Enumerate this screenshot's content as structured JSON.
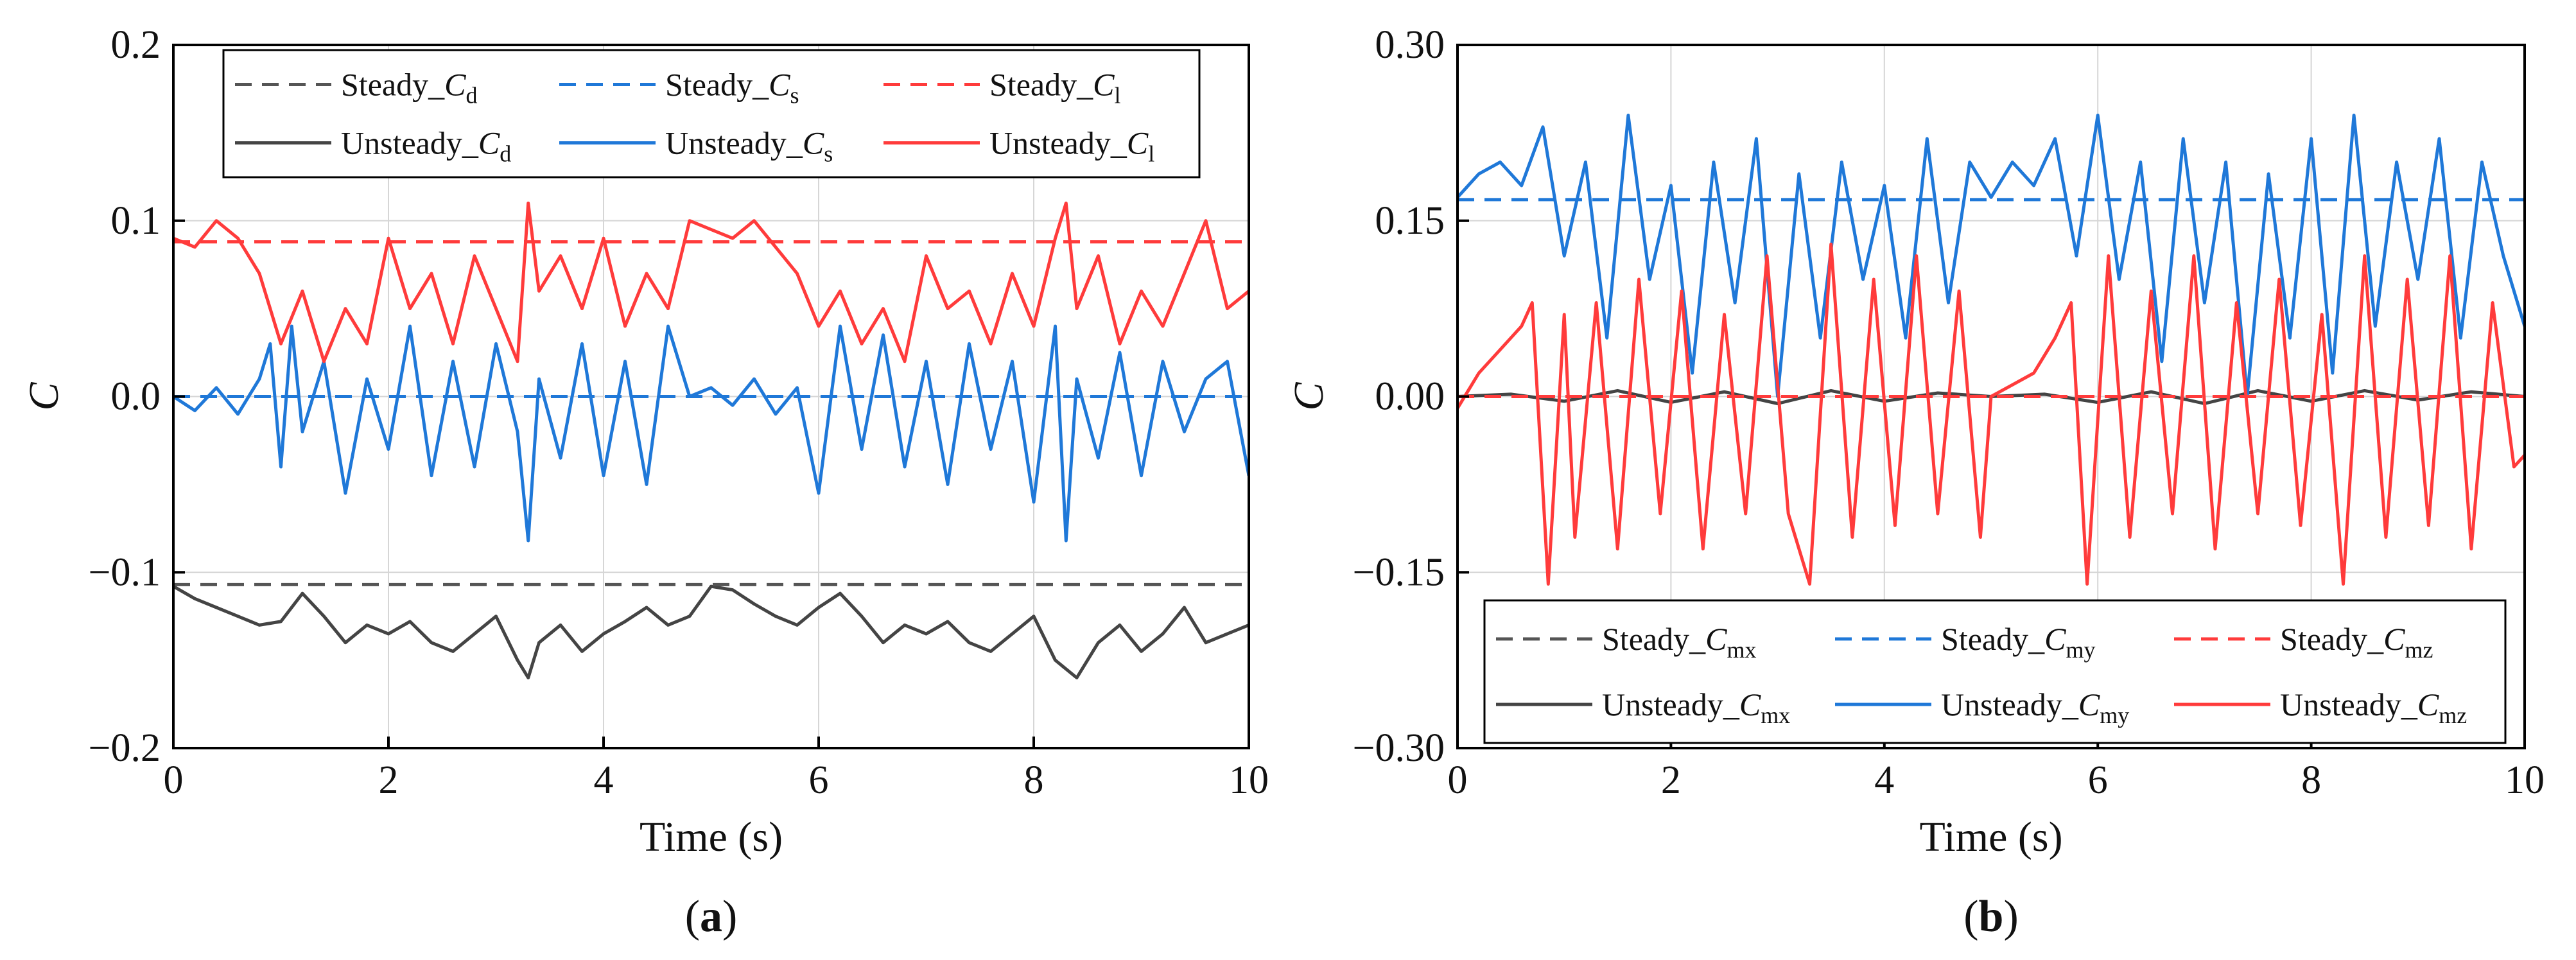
{
  "chart_data": [
    {
      "type": "line",
      "panel_label": "a",
      "xlabel": "Time (s)",
      "ylabel": "C",
      "xlim": [
        0,
        10
      ],
      "ylim": [
        -0.2,
        0.2
      ],
      "x_ticks": [
        0,
        2,
        4,
        6,
        8,
        10
      ],
      "x_tick_labels": [
        "0",
        "2",
        "4",
        "6",
        "8",
        "10"
      ],
      "y_ticks": [
        -0.2,
        -0.1,
        0.0,
        0.1,
        0.2
      ],
      "y_tick_labels": [
        "−0.2",
        "−0.1",
        "0.0",
        "0.1",
        "0.2"
      ],
      "grid": true,
      "legend_position": "top",
      "legend_columns": 3,
      "series": [
        {
          "name": "Steady_Cd",
          "legend_prefix": "Steady_",
          "legend_symbol": "C",
          "legend_sub": "d",
          "style": "dashed",
          "color": "#555555",
          "x": [
            0,
            10
          ],
          "y": [
            -0.107,
            -0.107
          ]
        },
        {
          "name": "Steady_Cs",
          "legend_prefix": "Steady_",
          "legend_symbol": "C",
          "legend_sub": "s",
          "style": "dashed",
          "color": "#1f78d8",
          "x": [
            0,
            10
          ],
          "y": [
            0.0,
            0.0
          ]
        },
        {
          "name": "Steady_Cl",
          "legend_prefix": "Steady_",
          "legend_symbol": "C",
          "legend_sub": "l",
          "style": "dashed",
          "color": "#ff3b3b",
          "x": [
            0,
            10
          ],
          "y": [
            0.088,
            0.088
          ]
        },
        {
          "name": "Unsteady_Cd",
          "legend_prefix": "Unsteady_",
          "legend_symbol": "C",
          "legend_sub": "d",
          "style": "solid",
          "color": "#444444",
          "x": [
            0,
            0.2,
            0.4,
            0.6,
            0.8,
            1.0,
            1.2,
            1.4,
            1.6,
            1.8,
            2.0,
            2.2,
            2.4,
            2.6,
            2.8,
            3.0,
            3.2,
            3.3,
            3.4,
            3.6,
            3.8,
            4.0,
            4.2,
            4.4,
            4.6,
            4.8,
            5.0,
            5.2,
            5.4,
            5.6,
            5.8,
            6.0,
            6.2,
            6.4,
            6.6,
            6.8,
            7.0,
            7.2,
            7.4,
            7.6,
            7.8,
            8.0,
            8.2,
            8.4,
            8.6,
            8.8,
            9.0,
            9.2,
            9.4,
            9.6,
            9.8,
            10.0
          ],
          "y": [
            -0.108,
            -0.115,
            -0.12,
            -0.125,
            -0.13,
            -0.128,
            -0.112,
            -0.125,
            -0.14,
            -0.13,
            -0.135,
            -0.128,
            -0.14,
            -0.145,
            -0.135,
            -0.125,
            -0.15,
            -0.16,
            -0.14,
            -0.13,
            -0.145,
            -0.135,
            -0.128,
            -0.12,
            -0.13,
            -0.125,
            -0.108,
            -0.11,
            -0.118,
            -0.125,
            -0.13,
            -0.12,
            -0.112,
            -0.125,
            -0.14,
            -0.13,
            -0.135,
            -0.128,
            -0.14,
            -0.145,
            -0.135,
            -0.125,
            -0.15,
            -0.16,
            -0.14,
            -0.13,
            -0.145,
            -0.135,
            -0.12,
            -0.14,
            -0.135,
            -0.13
          ]
        },
        {
          "name": "Unsteady_Cs",
          "legend_prefix": "Unsteady_",
          "legend_symbol": "C",
          "legend_sub": "s",
          "style": "solid",
          "color": "#1f78d8",
          "x": [
            0,
            0.2,
            0.4,
            0.6,
            0.8,
            0.9,
            1.0,
            1.1,
            1.2,
            1.4,
            1.6,
            1.8,
            2.0,
            2.2,
            2.4,
            2.6,
            2.8,
            3.0,
            3.2,
            3.3,
            3.4,
            3.6,
            3.8,
            4.0,
            4.2,
            4.4,
            4.6,
            4.8,
            5.0,
            5.2,
            5.4,
            5.6,
            5.8,
            6.0,
            6.2,
            6.4,
            6.6,
            6.8,
            7.0,
            7.2,
            7.4,
            7.6,
            7.8,
            8.0,
            8.2,
            8.3,
            8.4,
            8.6,
            8.8,
            9.0,
            9.2,
            9.4,
            9.6,
            9.8,
            10.0
          ],
          "y": [
            0.0,
            -0.008,
            0.005,
            -0.01,
            0.01,
            0.03,
            -0.04,
            0.04,
            -0.02,
            0.02,
            -0.055,
            0.01,
            -0.03,
            0.04,
            -0.045,
            0.02,
            -0.04,
            0.03,
            -0.02,
            -0.082,
            0.01,
            -0.035,
            0.03,
            -0.045,
            0.02,
            -0.05,
            0.04,
            0.0,
            0.005,
            -0.005,
            0.01,
            -0.01,
            0.005,
            -0.055,
            0.04,
            -0.03,
            0.035,
            -0.04,
            0.02,
            -0.05,
            0.03,
            -0.03,
            0.02,
            -0.06,
            0.04,
            -0.082,
            0.01,
            -0.035,
            0.025,
            -0.045,
            0.02,
            -0.02,
            0.01,
            0.02,
            -0.045
          ]
        },
        {
          "name": "Unsteady_Cl",
          "legend_prefix": "Unsteady_",
          "legend_symbol": "C",
          "legend_sub": "l",
          "style": "solid",
          "color": "#ff3b3b",
          "x": [
            0,
            0.2,
            0.4,
            0.6,
            0.8,
            0.9,
            1.0,
            1.2,
            1.4,
            1.6,
            1.8,
            2.0,
            2.2,
            2.4,
            2.6,
            2.8,
            3.0,
            3.2,
            3.3,
            3.4,
            3.6,
            3.8,
            4.0,
            4.2,
            4.4,
            4.6,
            4.8,
            5.0,
            5.2,
            5.4,
            5.6,
            5.8,
            6.0,
            6.2,
            6.4,
            6.6,
            6.8,
            7.0,
            7.2,
            7.4,
            7.6,
            7.8,
            8.0,
            8.2,
            8.3,
            8.4,
            8.6,
            8.8,
            9.0,
            9.2,
            9.4,
            9.6,
            9.8,
            10.0
          ],
          "y": [
            0.09,
            0.085,
            0.1,
            0.09,
            0.07,
            0.05,
            0.03,
            0.06,
            0.02,
            0.05,
            0.03,
            0.09,
            0.05,
            0.07,
            0.03,
            0.08,
            0.05,
            0.02,
            0.11,
            0.06,
            0.08,
            0.05,
            0.09,
            0.04,
            0.07,
            0.05,
            0.1,
            0.095,
            0.09,
            0.1,
            0.085,
            0.07,
            0.04,
            0.06,
            0.03,
            0.05,
            0.02,
            0.08,
            0.05,
            0.06,
            0.03,
            0.07,
            0.04,
            0.09,
            0.11,
            0.05,
            0.08,
            0.03,
            0.06,
            0.04,
            0.07,
            0.1,
            0.05,
            0.06
          ]
        }
      ]
    },
    {
      "type": "line",
      "panel_label": "b",
      "xlabel": "Time (s)",
      "ylabel": "C",
      "xlim": [
        0,
        10
      ],
      "ylim": [
        -0.3,
        0.3
      ],
      "x_ticks": [
        0,
        2,
        4,
        6,
        8,
        10
      ],
      "x_tick_labels": [
        "0",
        "2",
        "4",
        "6",
        "8",
        "10"
      ],
      "y_ticks": [
        -0.3,
        -0.15,
        0.0,
        0.15,
        0.3
      ],
      "y_tick_labels": [
        "−0.30",
        "−0.15",
        "0.00",
        "0.15",
        "0.30"
      ],
      "grid": true,
      "legend_position": "bottom",
      "legend_columns": 3,
      "series": [
        {
          "name": "Steady_Cmx",
          "legend_prefix": "Steady_",
          "legend_symbol": "C",
          "legend_sub": "mx",
          "style": "dashed",
          "color": "#555555",
          "x": [
            0,
            10
          ],
          "y": [
            0.0,
            0.0
          ]
        },
        {
          "name": "Steady_Cmy",
          "legend_prefix": "Steady_",
          "legend_symbol": "C",
          "legend_sub": "my",
          "style": "dashed",
          "color": "#1f78d8",
          "x": [
            0,
            10
          ],
          "y": [
            0.168,
            0.168
          ]
        },
        {
          "name": "Steady_Cmz",
          "legend_prefix": "Steady_",
          "legend_symbol": "C",
          "legend_sub": "mz",
          "style": "dashed",
          "color": "#ff3b3b",
          "x": [
            0,
            10
          ],
          "y": [
            0.0,
            0.0
          ]
        },
        {
          "name": "Unsteady_Cmx",
          "legend_prefix": "Unsteady_",
          "legend_symbol": "C",
          "legend_sub": "mx",
          "style": "solid",
          "color": "#444444",
          "x": [
            0,
            0.5,
            1.0,
            1.5,
            2.0,
            2.5,
            3.0,
            3.5,
            4.0,
            4.5,
            5.0,
            5.5,
            6.0,
            6.5,
            7.0,
            7.5,
            8.0,
            8.5,
            9.0,
            9.5,
            10.0
          ],
          "y": [
            0.0,
            0.002,
            -0.004,
            0.005,
            -0.005,
            0.004,
            -0.006,
            0.005,
            -0.004,
            0.003,
            0.0,
            0.002,
            -0.005,
            0.004,
            -0.006,
            0.005,
            -0.004,
            0.005,
            -0.003,
            0.004,
            0.0
          ]
        },
        {
          "name": "Unsteady_Cmy",
          "legend_prefix": "Unsteady_",
          "legend_symbol": "C",
          "legend_sub": "my",
          "style": "solid",
          "color": "#1f78d8",
          "x": [
            0,
            0.2,
            0.4,
            0.6,
            0.8,
            1.0,
            1.2,
            1.4,
            1.6,
            1.8,
            2.0,
            2.2,
            2.4,
            2.6,
            2.8,
            3.0,
            3.2,
            3.4,
            3.6,
            3.8,
            4.0,
            4.2,
            4.4,
            4.6,
            4.8,
            5.0,
            5.2,
            5.4,
            5.6,
            5.8,
            6.0,
            6.2,
            6.4,
            6.6,
            6.8,
            7.0,
            7.2,
            7.4,
            7.6,
            7.8,
            8.0,
            8.2,
            8.4,
            8.6,
            8.8,
            9.0,
            9.2,
            9.4,
            9.6,
            9.8,
            10.0
          ],
          "y": [
            0.17,
            0.19,
            0.2,
            0.18,
            0.23,
            0.12,
            0.2,
            0.05,
            0.24,
            0.1,
            0.18,
            0.02,
            0.2,
            0.08,
            0.22,
            0.0,
            0.19,
            0.05,
            0.2,
            0.1,
            0.18,
            0.05,
            0.22,
            0.08,
            0.2,
            0.17,
            0.2,
            0.18,
            0.22,
            0.12,
            0.24,
            0.1,
            0.2,
            0.03,
            0.22,
            0.08,
            0.2,
            0.0,
            0.19,
            0.05,
            0.22,
            0.02,
            0.24,
            0.06,
            0.2,
            0.1,
            0.22,
            0.05,
            0.2,
            0.12,
            0.06
          ]
        },
        {
          "name": "Unsteady_Cmz",
          "legend_prefix": "Unsteady_",
          "legend_symbol": "C",
          "legend_sub": "mz",
          "style": "solid",
          "color": "#ff3b3b",
          "x": [
            0,
            0.2,
            0.4,
            0.6,
            0.7,
            0.85,
            1.0,
            1.1,
            1.3,
            1.5,
            1.7,
            1.9,
            2.1,
            2.3,
            2.5,
            2.7,
            2.9,
            3.1,
            3.3,
            3.5,
            3.7,
            3.9,
            4.1,
            4.3,
            4.5,
            4.7,
            4.9,
            5.0,
            5.2,
            5.4,
            5.6,
            5.75,
            5.9,
            6.1,
            6.3,
            6.5,
            6.7,
            6.9,
            7.1,
            7.3,
            7.5,
            7.7,
            7.9,
            8.1,
            8.3,
            8.5,
            8.7,
            8.9,
            9.1,
            9.3,
            9.5,
            9.7,
            9.9,
            10.0
          ],
          "y": [
            -0.01,
            0.02,
            0.04,
            0.06,
            0.08,
            -0.16,
            0.07,
            -0.12,
            0.08,
            -0.13,
            0.1,
            -0.1,
            0.09,
            -0.13,
            0.07,
            -0.1,
            0.12,
            -0.1,
            -0.16,
            0.13,
            -0.12,
            0.1,
            -0.11,
            0.12,
            -0.1,
            0.09,
            -0.12,
            0.0,
            0.01,
            0.02,
            0.05,
            0.08,
            -0.16,
            0.12,
            -0.12,
            0.09,
            -0.1,
            0.12,
            -0.13,
            0.08,
            -0.1,
            0.1,
            -0.11,
            0.07,
            -0.16,
            0.12,
            -0.12,
            0.1,
            -0.11,
            0.12,
            -0.13,
            0.08,
            -0.06,
            -0.05
          ]
        }
      ]
    }
  ]
}
